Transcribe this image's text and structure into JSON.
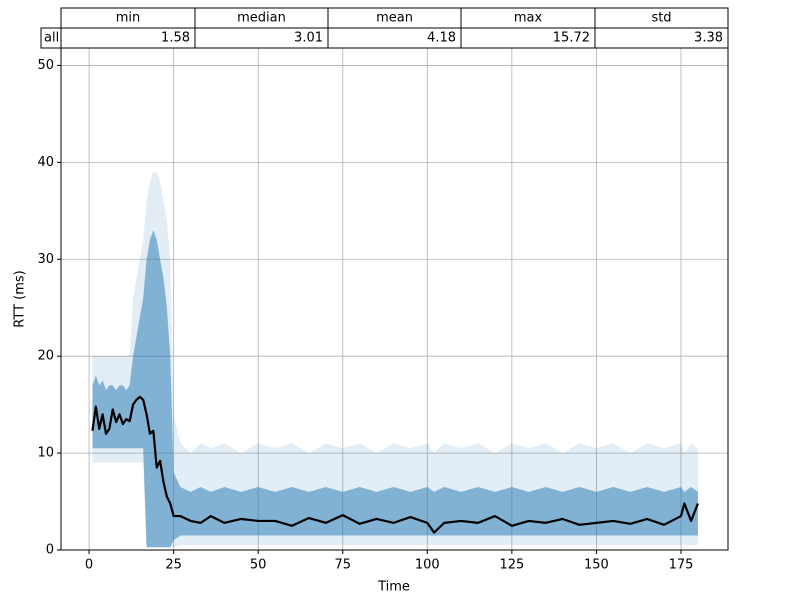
{
  "table": {
    "columns": [
      "min",
      "median",
      "mean",
      "max",
      "std"
    ],
    "rows": [
      {
        "label": "all",
        "cells": [
          1.58,
          3.01,
          4.18,
          15.72,
          3.38
        ]
      }
    ]
  },
  "chart_data": {
    "type": "line",
    "xlabel": "Time",
    "ylabel": "RTT (ms)",
    "xlim": [
      -8.3,
      188.9
    ],
    "ylim": [
      0,
      51.8
    ],
    "xticks": [
      0,
      25,
      50,
      75,
      100,
      125,
      150,
      175
    ],
    "yticks": [
      0,
      10,
      20,
      30,
      40,
      50
    ],
    "grid": true,
    "x": [
      1,
      2,
      3,
      4,
      5,
      6,
      7,
      8,
      9,
      10,
      11,
      12,
      13,
      14,
      15,
      16,
      17,
      18,
      19,
      20,
      21,
      22,
      23,
      24,
      25,
      27,
      30,
      33,
      36,
      40,
      45,
      50,
      55,
      60,
      65,
      70,
      75,
      80,
      85,
      90,
      95,
      100,
      102,
      105,
      110,
      115,
      120,
      125,
      130,
      135,
      140,
      145,
      150,
      155,
      160,
      165,
      170,
      175,
      176,
      178,
      180
    ],
    "bands": [
      {
        "color": "#1f77b4",
        "opacity": 0.13,
        "lower": [
          9,
          9,
          9,
          9,
          9,
          9,
          9,
          9,
          9,
          9,
          9,
          9,
          9,
          9,
          9,
          9,
          0.2,
          0.2,
          0.2,
          0.2,
          0.2,
          0.2,
          0.2,
          0.2,
          0.3,
          0.5,
          0.5,
          0.5,
          0.5,
          0.5,
          0.5,
          0.5,
          0.5,
          0.5,
          0.5,
          0.5,
          0.5,
          0.5,
          0.5,
          0.5,
          0.5,
          0.5,
          0.5,
          0.5,
          0.5,
          0.5,
          0.5,
          0.5,
          0.5,
          0.5,
          0.5,
          0.5,
          0.5,
          0.5,
          0.5,
          0.5,
          0.5,
          0.5,
          0.5,
          0.5,
          0.5
        ],
        "upper": [
          20,
          20,
          20,
          20,
          20,
          20,
          20,
          20,
          20,
          20,
          20,
          20,
          26,
          28,
          30,
          32,
          36,
          38,
          39,
          39,
          38,
          36,
          34,
          30,
          14,
          11,
          10,
          11,
          10.5,
          11,
          10,
          11,
          10.5,
          11,
          10,
          11,
          10.5,
          11,
          10,
          11,
          10.5,
          11,
          10,
          11,
          10.5,
          11,
          10,
          11,
          10.5,
          11,
          10,
          11,
          10.5,
          11,
          10,
          11,
          10.5,
          11,
          10,
          11,
          10.5
        ]
      },
      {
        "color": "#1f77b4",
        "opacity": 0.5,
        "lower": [
          10.5,
          10.5,
          10.5,
          10.5,
          10.5,
          10.5,
          10.5,
          10.5,
          10.5,
          10.5,
          10.5,
          10.5,
          10.5,
          10.5,
          10.5,
          10.5,
          0.3,
          0.3,
          0.3,
          0.3,
          0.3,
          0.3,
          0.3,
          0.3,
          1,
          1.5,
          1.5,
          1.5,
          1.5,
          1.5,
          1.5,
          1.5,
          1.5,
          1.5,
          1.5,
          1.5,
          1.5,
          1.5,
          1.5,
          1.5,
          1.5,
          1.5,
          1.5,
          1.5,
          1.5,
          1.5,
          1.5,
          1.5,
          1.5,
          1.5,
          1.5,
          1.5,
          1.5,
          1.5,
          1.5,
          1.5,
          1.5,
          1.5,
          1.5,
          1.5,
          1.5
        ],
        "upper": [
          17,
          18,
          17,
          17.5,
          16.5,
          17,
          17,
          16.5,
          17,
          17,
          16.5,
          17,
          20,
          22,
          24,
          26,
          30,
          32,
          33,
          32,
          30,
          28,
          25,
          20,
          8,
          6.5,
          6,
          6.5,
          6,
          6.5,
          6,
          6.5,
          6,
          6.5,
          6,
          6.5,
          6,
          6.5,
          6,
          6.5,
          6,
          6.5,
          6,
          6.5,
          6,
          6.5,
          6,
          6.5,
          6,
          6.5,
          6,
          6.5,
          6,
          6.5,
          6,
          6.5,
          6,
          6.5,
          6,
          6.5,
          6
        ]
      }
    ],
    "series": [
      {
        "color": "#000000",
        "values": [
          12.3,
          14.8,
          12.5,
          14,
          12,
          12.5,
          14.5,
          13.2,
          14,
          13,
          13.5,
          13.3,
          15,
          15.5,
          15.8,
          15.5,
          14,
          12,
          12.3,
          8.5,
          9.2,
          7,
          5.5,
          4.8,
          3.5,
          3.5,
          3,
          2.8,
          3.5,
          2.8,
          3.2,
          3,
          3,
          2.5,
          3.3,
          2.8,
          3.6,
          2.7,
          3.2,
          2.8,
          3.4,
          2.8,
          1.8,
          2.8,
          3,
          2.8,
          3.5,
          2.5,
          3,
          2.8,
          3.2,
          2.6,
          2.8,
          3,
          2.7,
          3.2,
          2.6,
          3.5,
          4.8,
          3,
          4.8
        ]
      }
    ]
  }
}
